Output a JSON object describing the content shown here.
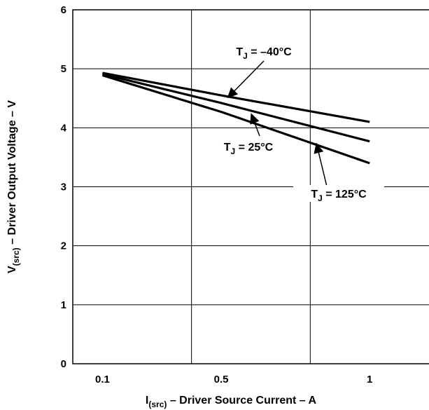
{
  "chart_data": {
    "type": "line",
    "xlabel_main": "I",
    "xlabel_sub": "(src)",
    "xlabel_rest": " – Driver Source Current – A",
    "ylabel_main": "V",
    "ylabel_sub": "(src)",
    "ylabel_rest": " – Driver Output Voltage – V",
    "xlim": [
      0,
      1.2
    ],
    "ylim": [
      0,
      6
    ],
    "x_ticks": [
      {
        "value": 0.1,
        "label": "0.1"
      },
      {
        "value": 0.5,
        "label": "0.5"
      },
      {
        "value": 1,
        "label": "1"
      }
    ],
    "y_ticks": [
      {
        "value": 0,
        "label": "0"
      },
      {
        "value": 1,
        "label": "1"
      },
      {
        "value": 2,
        "label": "2"
      },
      {
        "value": 3,
        "label": "3"
      },
      {
        "value": 4,
        "label": "4"
      },
      {
        "value": 5,
        "label": "5"
      },
      {
        "value": 6,
        "label": "6"
      }
    ],
    "x_gridlines": [
      0.4,
      0.8
    ],
    "grid": true,
    "series": [
      {
        "name": "T_J = –40°C",
        "x": [
          0.1,
          0.5,
          1.0
        ],
        "y": [
          4.93,
          4.55,
          4.1
        ]
      },
      {
        "name": "T_J = 25°C",
        "x": [
          0.1,
          0.5,
          1.0
        ],
        "y": [
          4.91,
          4.42,
          3.77
        ]
      },
      {
        "name": "T_J = 125°C",
        "x": [
          0.1,
          0.5,
          1.0
        ],
        "y": [
          4.89,
          4.27,
          3.4
        ]
      }
    ],
    "annotations": [
      {
        "series": 0,
        "text_main": "T",
        "text_sub": "J",
        "text_rest": " = –40°C",
        "arrow_to": [
          0.52,
          4.5
        ]
      },
      {
        "series": 1,
        "text_main": "T",
        "text_sub": "J",
        "text_rest": " = 25°C",
        "arrow_to": [
          0.6,
          4.25
        ]
      },
      {
        "series": 2,
        "text_main": "T",
        "text_sub": "J",
        "text_rest": " = 125°C",
        "arrow_to": [
          0.82,
          3.75
        ]
      }
    ]
  }
}
